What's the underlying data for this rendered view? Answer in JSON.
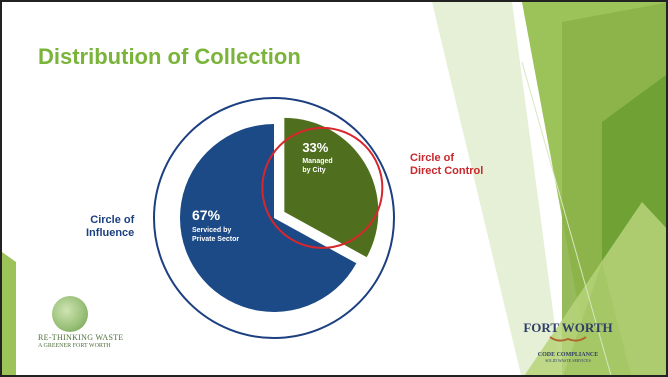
{
  "slide": {
    "title": "Distribution of Collection"
  },
  "colors": {
    "title": "#7ab43a",
    "private_slice": "#1c4a87",
    "city_slice": "#4f6f1e",
    "influence_circle": "#1c3f80",
    "direct_circle": "#d7262c",
    "influence_label": "#1c3f80",
    "direct_label": "#c8272c"
  },
  "chart_data": {
    "type": "pie",
    "series": [
      {
        "name": "Serviced by Private Sector",
        "value": 67,
        "pct_label": "67%",
        "label_lines": [
          "Serviced by",
          "Private Sector"
        ]
      },
      {
        "name": "Managed by City",
        "value": 33,
        "pct_label": "33%",
        "label_lines": [
          "Managed",
          "by City"
        ]
      }
    ],
    "title": "",
    "annotations": {
      "circle_of_influence": [
        "Circle of",
        "Influence"
      ],
      "circle_of_direct_control": [
        "Circle of",
        "Direct Control"
      ]
    }
  },
  "logos": {
    "left": {
      "line1": "RE-THINKING WASTE",
      "line2": "A GREENER FORT WORTH",
      "icon": "globe-icon"
    },
    "right": {
      "name": "FORT WORTH",
      "dept": "CODE COMPLIANCE",
      "division": "SOLID WASTE SERVICES",
      "icon": "longhorn-icon"
    }
  }
}
